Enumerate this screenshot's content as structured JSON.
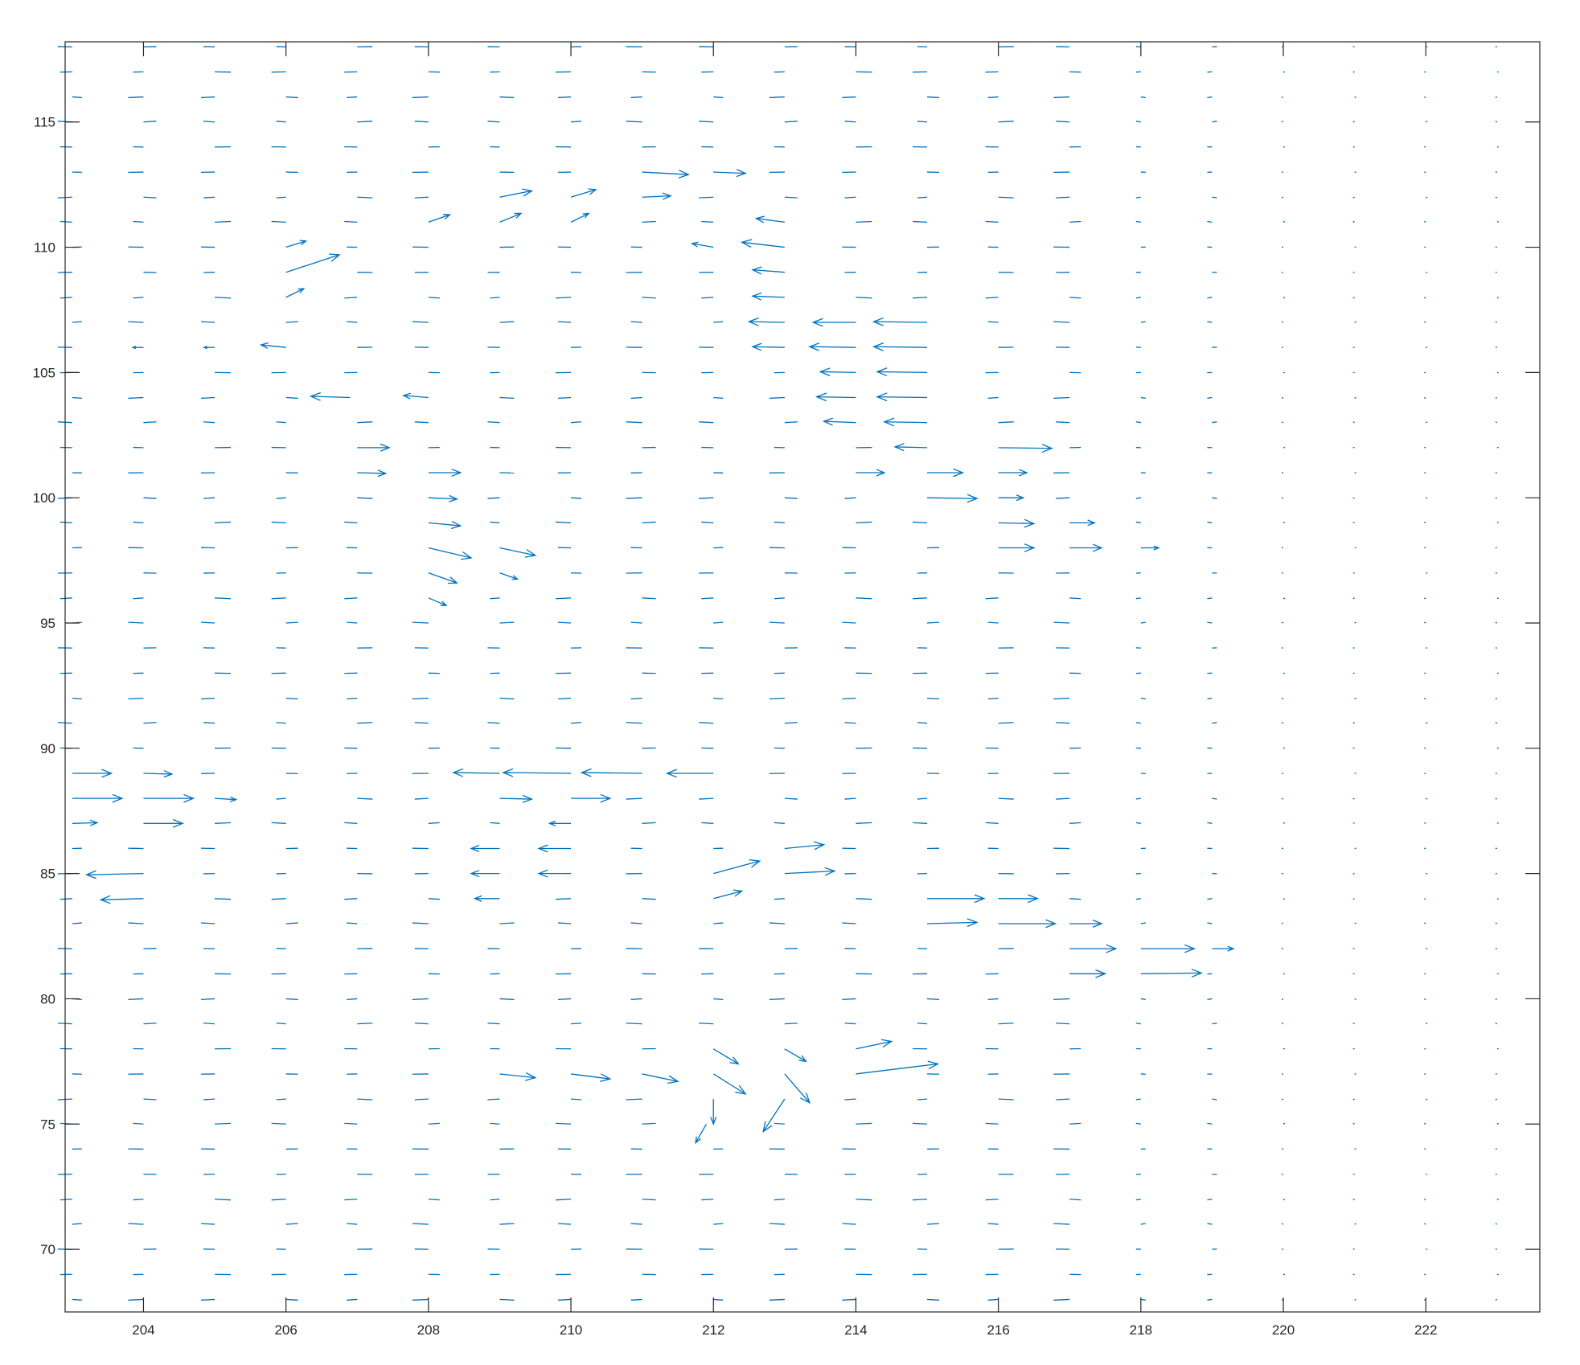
{
  "chart_data": {
    "type": "quiver",
    "title": "",
    "xlabel": "",
    "ylabel": "",
    "xlim": [
      202.9,
      223.6
    ],
    "ylim": [
      67.5,
      118.2
    ],
    "xticks": [
      204,
      206,
      208,
      210,
      212,
      214,
      216,
      218,
      220,
      222
    ],
    "yticks": [
      70,
      75,
      80,
      85,
      90,
      95,
      100,
      105,
      110,
      115
    ],
    "xtick_labels": [
      "204",
      "206",
      "208",
      "210",
      "212",
      "214",
      "216",
      "218",
      "220",
      "222"
    ],
    "ytick_labels": [
      "70",
      "75",
      "80",
      "85",
      "90",
      "95",
      "100",
      "105",
      "110",
      "115"
    ],
    "grid": false,
    "box": true,
    "arrow_color": "#0072BD",
    "axis_color": "#262626",
    "grid_x": [
      203,
      204,
      205,
      206,
      207,
      208,
      209,
      210,
      211,
      212,
      213,
      214,
      215,
      216,
      217,
      218,
      219,
      220,
      221,
      222,
      223
    ],
    "grid_y": [
      68,
      69,
      70,
      71,
      72,
      73,
      74,
      75,
      76,
      77,
      78,
      79,
      80,
      81,
      82,
      83,
      84,
      85,
      86,
      87,
      88,
      89,
      90,
      91,
      92,
      93,
      94,
      95,
      96,
      97,
      98,
      99,
      100,
      101,
      102,
      103,
      104,
      105,
      106,
      107,
      108,
      109,
      110,
      111,
      112,
      113,
      114,
      115,
      116,
      117,
      118
    ],
    "vectors": [
      {
        "x": 206,
        "y": 109,
        "u": 0.75,
        "v": 0.7
      },
      {
        "x": 206,
        "y": 106,
        "u": -0.35,
        "v": 0.1
      },
      {
        "x": 206.9,
        "y": 104,
        "u": -0.55,
        "v": 0.05
      },
      {
        "x": 208,
        "y": 104,
        "u": -0.35,
        "v": 0.08
      },
      {
        "x": 206,
        "y": 110,
        "u": 0.28,
        "v": 0.25
      },
      {
        "x": 206,
        "y": 108,
        "u": 0.25,
        "v": 0.35
      },
      {
        "x": 207,
        "y": 102,
        "u": 0.45,
        "v": 0.0
      },
      {
        "x": 207,
        "y": 101,
        "u": 0.4,
        "v": -0.03
      },
      {
        "x": 208,
        "y": 101,
        "u": 0.45,
        "v": 0.0
      },
      {
        "x": 208,
        "y": 100,
        "u": 0.4,
        "v": -0.05
      },
      {
        "x": 208,
        "y": 99,
        "u": 0.45,
        "v": -0.12
      },
      {
        "x": 208,
        "y": 98,
        "u": 0.6,
        "v": -0.4
      },
      {
        "x": 208,
        "y": 97,
        "u": 0.4,
        "v": -0.4
      },
      {
        "x": 208,
        "y": 96,
        "u": 0.25,
        "v": -0.3
      },
      {
        "x": 209,
        "y": 98,
        "u": 0.5,
        "v": -0.3
      },
      {
        "x": 209,
        "y": 97,
        "u": 0.25,
        "v": -0.25
      },
      {
        "x": 209,
        "y": 112,
        "u": 0.45,
        "v": 0.25
      },
      {
        "x": 209,
        "y": 111,
        "u": 0.3,
        "v": 0.35
      },
      {
        "x": 208,
        "y": 111,
        "u": 0.3,
        "v": 0.3
      },
      {
        "x": 210,
        "y": 112,
        "u": 0.35,
        "v": 0.3
      },
      {
        "x": 210,
        "y": 111,
        "u": 0.25,
        "v": 0.35
      },
      {
        "x": 211,
        "y": 113,
        "u": 0.65,
        "v": -0.1
      },
      {
        "x": 212,
        "y": 113,
        "u": 0.45,
        "v": -0.05
      },
      {
        "x": 211,
        "y": 112,
        "u": 0.4,
        "v": 0.05
      },
      {
        "x": 213,
        "y": 110,
        "u": -0.6,
        "v": 0.2
      },
      {
        "x": 213,
        "y": 111,
        "u": -0.4,
        "v": 0.15
      },
      {
        "x": 212,
        "y": 110,
        "u": -0.3,
        "v": 0.15
      },
      {
        "x": 213,
        "y": 109,
        "u": -0.45,
        "v": 0.1
      },
      {
        "x": 213,
        "y": 108,
        "u": -0.45,
        "v": 0.05
      },
      {
        "x": 213,
        "y": 107,
        "u": -0.5,
        "v": 0.03
      },
      {
        "x": 214,
        "y": 107,
        "u": -0.6,
        "v": 0.0
      },
      {
        "x": 215,
        "y": 107,
        "u": -0.75,
        "v": 0.03
      },
      {
        "x": 214,
        "y": 106,
        "u": -0.65,
        "v": 0.03
      },
      {
        "x": 215,
        "y": 106,
        "u": -0.75,
        "v": 0.03
      },
      {
        "x": 213,
        "y": 106,
        "u": -0.45,
        "v": 0.03
      },
      {
        "x": 215,
        "y": 105,
        "u": -0.7,
        "v": 0.03
      },
      {
        "x": 214,
        "y": 105,
        "u": -0.5,
        "v": 0.03
      },
      {
        "x": 215,
        "y": 104,
        "u": -0.7,
        "v": 0.03
      },
      {
        "x": 214,
        "y": 104,
        "u": -0.55,
        "v": 0.03
      },
      {
        "x": 215,
        "y": 103,
        "u": -0.6,
        "v": 0.03
      },
      {
        "x": 214,
        "y": 103,
        "u": -0.45,
        "v": 0.05
      },
      {
        "x": 215,
        "y": 102,
        "u": -0.45,
        "v": 0.03
      },
      {
        "x": 214,
        "y": 101,
        "u": 0.4,
        "v": 0.0
      },
      {
        "x": 215,
        "y": 101,
        "u": 0.5,
        "v": 0.0
      },
      {
        "x": 215,
        "y": 100,
        "u": 0.7,
        "v": -0.03
      },
      {
        "x": 216,
        "y": 102,
        "u": 0.75,
        "v": -0.03
      },
      {
        "x": 216,
        "y": 101,
        "u": 0.4,
        "v": 0.0
      },
      {
        "x": 216,
        "y": 100,
        "u": 0.35,
        "v": 0.0
      },
      {
        "x": 216,
        "y": 99,
        "u": 0.5,
        "v": -0.03
      },
      {
        "x": 216,
        "y": 98,
        "u": 0.5,
        "v": 0.0
      },
      {
        "x": 217,
        "y": 99,
        "u": 0.35,
        "v": 0.0
      },
      {
        "x": 217,
        "y": 98,
        "u": 0.45,
        "v": 0.0
      },
      {
        "x": 218,
        "y": 98,
        "u": 0.25,
        "v": 0.0
      },
      {
        "x": 212,
        "y": 89,
        "u": -0.65,
        "v": 0.0
      },
      {
        "x": 211,
        "y": 89,
        "u": -0.85,
        "v": 0.03
      },
      {
        "x": 210,
        "y": 89,
        "u": -0.95,
        "v": 0.03
      },
      {
        "x": 209,
        "y": 89,
        "u": -0.65,
        "v": 0.03
      },
      {
        "x": 210,
        "y": 88,
        "u": 0.55,
        "v": 0.0
      },
      {
        "x": 209,
        "y": 88,
        "u": 0.45,
        "v": -0.03
      },
      {
        "x": 210,
        "y": 87,
        "u": -0.3,
        "v": 0.0
      },
      {
        "x": 210,
        "y": 86,
        "u": -0.45,
        "v": 0.0
      },
      {
        "x": 210,
        "y": 85,
        "u": -0.45,
        "v": 0.0
      },
      {
        "x": 209,
        "y": 86,
        "u": -0.4,
        "v": 0.0
      },
      {
        "x": 209,
        "y": 85,
        "u": -0.4,
        "v": 0.0
      },
      {
        "x": 209,
        "y": 84,
        "u": -0.35,
        "v": 0.0
      },
      {
        "x": 205,
        "y": 88,
        "u": 0.3,
        "v": -0.05
      },
      {
        "x": 204,
        "y": 88,
        "u": 0.7,
        "v": 0.0
      },
      {
        "x": 204,
        "y": 87,
        "u": 0.55,
        "v": 0.0
      },
      {
        "x": 204,
        "y": 89,
        "u": 0.4,
        "v": -0.03
      },
      {
        "x": 203,
        "y": 89,
        "u": 0.55,
        "v": 0.0
      },
      {
        "x": 203,
        "y": 88,
        "u": 0.7,
        "v": 0.0
      },
      {
        "x": 203,
        "y": 87,
        "u": 0.35,
        "v": 0.03
      },
      {
        "x": 204,
        "y": 85,
        "u": -0.8,
        "v": -0.05
      },
      {
        "x": 204,
        "y": 84,
        "u": -0.6,
        "v": -0.05
      },
      {
        "x": 212,
        "y": 85,
        "u": 0.65,
        "v": 0.5
      },
      {
        "x": 212,
        "y": 84,
        "u": 0.4,
        "v": 0.3
      },
      {
        "x": 213,
        "y": 86,
        "u": 0.55,
        "v": 0.15
      },
      {
        "x": 213,
        "y": 85,
        "u": 0.7,
        "v": 0.1
      },
      {
        "x": 214,
        "y": 77,
        "u": 1.15,
        "v": 0.4
      },
      {
        "x": 212,
        "y": 76,
        "u": 0.0,
        "v": -1.0
      },
      {
        "x": 211.9,
        "y": 75,
        "u": -0.15,
        "v": -0.75
      },
      {
        "x": 213,
        "y": 77,
        "u": 0.35,
        "v": -1.15
      },
      {
        "x": 213,
        "y": 76,
        "u": -0.3,
        "v": -1.3
      },
      {
        "x": 212,
        "y": 77,
        "u": 0.45,
        "v": -0.8
      },
      {
        "x": 212,
        "y": 78,
        "u": 0.35,
        "v": -0.6
      },
      {
        "x": 213,
        "y": 78,
        "u": 0.3,
        "v": -0.5
      },
      {
        "x": 211,
        "y": 77,
        "u": 0.5,
        "v": -0.3
      },
      {
        "x": 210,
        "y": 77,
        "u": 0.55,
        "v": -0.2
      },
      {
        "x": 209,
        "y": 77,
        "u": 0.5,
        "v": -0.15
      },
      {
        "x": 214,
        "y": 78,
        "u": 0.5,
        "v": 0.3
      },
      {
        "x": 215,
        "y": 84,
        "u": 0.8,
        "v": 0.0
      },
      {
        "x": 216,
        "y": 84,
        "u": 0.55,
        "v": 0.0
      },
      {
        "x": 215,
        "y": 83,
        "u": 0.7,
        "v": 0.05
      },
      {
        "x": 216,
        "y": 83,
        "u": 0.8,
        "v": 0.0
      },
      {
        "x": 217,
        "y": 83,
        "u": 0.45,
        "v": 0.0
      },
      {
        "x": 217,
        "y": 82,
        "u": 0.65,
        "v": 0.0
      },
      {
        "x": 218,
        "y": 82,
        "u": 0.75,
        "v": 0.0
      },
      {
        "x": 218,
        "y": 81,
        "u": 0.85,
        "v": 0.03
      },
      {
        "x": 217,
        "y": 81,
        "u": 0.5,
        "v": 0.0
      },
      {
        "x": 219,
        "y": 82,
        "u": 0.3,
        "v": 0.0
      },
      {
        "x": 204,
        "y": 106,
        "u": -0.15,
        "v": 0.0
      },
      {
        "x": 205,
        "y": 106,
        "u": -0.15,
        "v": 0.0
      }
    ]
  }
}
